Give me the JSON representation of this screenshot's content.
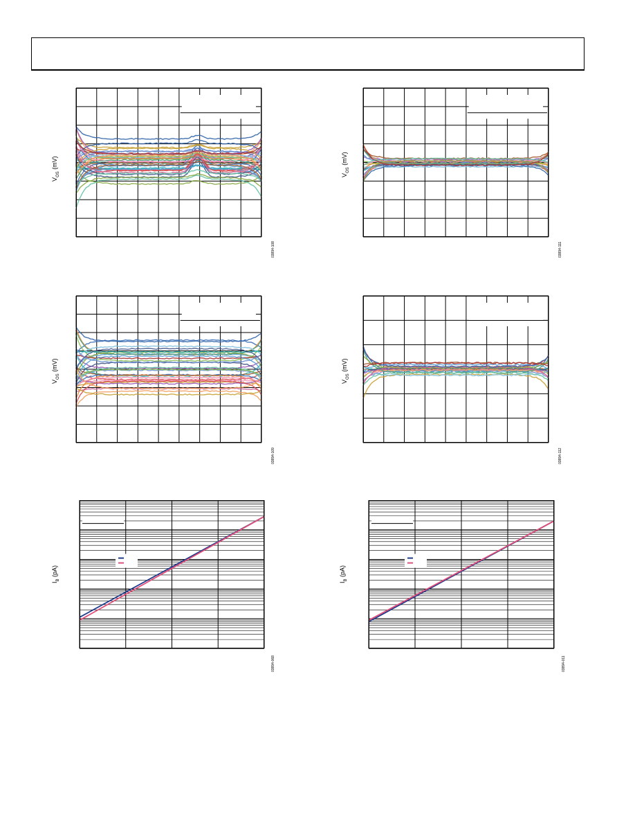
{
  "charts": [
    {
      "id": "c1",
      "ylabel_main": "V",
      "ylabel_sub": "OS",
      "ylabel_unit": " (mV)",
      "fignum": "03894-108"
    },
    {
      "id": "c2",
      "ylabel_main": "V",
      "ylabel_sub": "OS",
      "ylabel_unit": " (mV)",
      "fignum": "03894-111"
    },
    {
      "id": "c3",
      "ylabel_main": "V",
      "ylabel_sub": "OS",
      "ylabel_unit": " (mV)",
      "fignum": "03894-109"
    },
    {
      "id": "c4",
      "ylabel_main": "V",
      "ylabel_sub": "OS",
      "ylabel_unit": " (mV)",
      "fignum": "03894-112"
    },
    {
      "id": "c5",
      "ylabel_main": "I",
      "ylabel_sub": "B",
      "ylabel_unit": " (pA)",
      "fignum": "03894-068"
    },
    {
      "id": "c6",
      "ylabel_main": "I",
      "ylabel_sub": "B",
      "ylabel_unit": " (pA)",
      "fignum": "03894-011"
    }
  ],
  "chart_data": [
    {
      "type": "line",
      "title": "",
      "xlabel": "",
      "ylabel": "VOS (mV)",
      "grid": true,
      "xlim": [
        0,
        9
      ],
      "ylim": [
        -4,
        4
      ],
      "legend": "top-right box (blank)",
      "series_style": "many overlaid multicolored sample traces",
      "series_center": [
        0.0,
        0.1,
        0.2,
        0.3,
        -0.4,
        -0.3,
        0.5,
        0.6,
        -0.2,
        0.15,
        -0.6,
        0.25,
        0.05,
        -0.15,
        0.35,
        -0.5,
        1.0,
        -1.0,
        0.45,
        -0.8
      ],
      "edge_deviation": 1.6,
      "bump": {
        "x": 5.9,
        "height": 0.9
      }
    },
    {
      "type": "line",
      "title": "",
      "xlabel": "",
      "ylabel": "VOS (mV)",
      "grid": true,
      "xlim": [
        0,
        9
      ],
      "ylim": [
        -4,
        4
      ],
      "legend": "top-right box (blank)",
      "series_style": "many overlaid traces tightly clustered",
      "series_center": [
        0.0,
        0.05,
        -0.05,
        0.1,
        -0.1,
        0.08,
        -0.08,
        0.02,
        -0.02,
        0.12
      ],
      "edge_deviation": 1.2
    },
    {
      "type": "line",
      "title": "",
      "xlabel": "",
      "ylabel": "VOS (mV)",
      "grid": true,
      "xlim": [
        0,
        9
      ],
      "ylim": [
        -4,
        4
      ],
      "legend": "top-right box (blank)",
      "series_style": "many overlaid multicolored sample traces",
      "series_center": [
        1.5,
        0.8,
        0.5,
        0.2,
        -0.2,
        -0.4,
        0.1,
        -0.8,
        0.9,
        -0.6,
        0.3,
        -1.1,
        0.6,
        -0.3,
        1.0,
        -0.9
      ],
      "edge_deviation": 1.4
    },
    {
      "type": "line",
      "title": "",
      "xlabel": "",
      "ylabel": "VOS (mV)",
      "grid": true,
      "xlim": [
        0,
        9
      ],
      "ylim": [
        -3,
        3
      ],
      "legend": "top-right box (blank)",
      "series_style": "many overlaid traces tightly clustered",
      "series_center": [
        0.1,
        0.05,
        -0.05,
        0.15,
        -0.1,
        0.0,
        0.08,
        -0.08,
        0.12,
        -0.02
      ],
      "edge_deviation": 1.0
    },
    {
      "type": "line",
      "title": "",
      "xlabel": "",
      "ylabel": "IB (pA)",
      "grid": true,
      "yscale": "log",
      "xlim": [
        0,
        4
      ],
      "ylim_decades": 5,
      "legend": "left, two entries (dark blue, red)",
      "series": [
        {
          "color": "#1f3a8a",
          "y_start_decade": 1.05,
          "y_end_decade": 4.45
        },
        {
          "color": "#e0507a",
          "y_start_decade": 0.95,
          "y_end_decade": 4.45
        }
      ]
    },
    {
      "type": "line",
      "title": "",
      "xlabel": "",
      "ylabel": "IB (pA)",
      "grid": true,
      "yscale": "log",
      "xlim": [
        0,
        4
      ],
      "ylim_decades": 5,
      "legend": "left, two entries (dark blue, red)",
      "series": [
        {
          "color": "#1f3a8a",
          "y_start_decade": 0.9,
          "y_end_decade": 4.3
        },
        {
          "color": "#e0507a",
          "y_start_decade": 0.95,
          "y_end_decade": 4.3
        }
      ]
    }
  ],
  "colors": {
    "palette": [
      "#3b6fb6",
      "#e8823a",
      "#8cbf5a",
      "#9b59b6",
      "#2ab0b0",
      "#d94f4f",
      "#6b8fcf",
      "#c9a33a",
      "#5aa0d8",
      "#f08bb0",
      "#445588",
      "#f0a060",
      "#4aa080",
      "#a05a2c",
      "#7fc0e0",
      "#cc6699",
      "#3366aa",
      "#88aa44",
      "#aa3333",
      "#66c2a5"
    ]
  }
}
